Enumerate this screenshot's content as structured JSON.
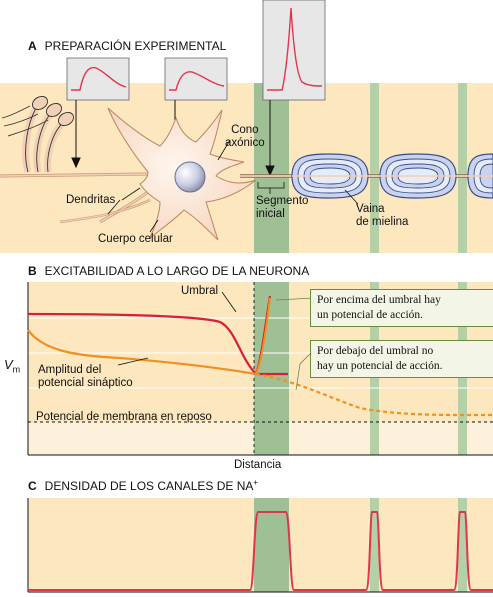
{
  "panel_a": {
    "letter": "A",
    "title": "PREPARACIÓN EXPERIMENTAL",
    "labels": {
      "cono": "Cono",
      "axonico": "axónico",
      "dendritas": "Dendritas",
      "cuerpo_celular": "Cuerpo celular",
      "segmento": "Segmento",
      "inicial": "inicial",
      "vaina": "Vaina",
      "de_mielina": "de mielina"
    }
  },
  "panel_b": {
    "letter": "B",
    "title": "EXCITABILIDAD A LO LARGO DE LA NEURONA",
    "labels": {
      "umbral": "Umbral",
      "amplitud_1": "Amplitud del",
      "amplitud_2": "potencial sináptico",
      "reposo": "Potencial de membrana en reposo",
      "distancia": "Distancia",
      "vm": "V",
      "vm_sub": "m"
    },
    "callouts": {
      "above_1": "Por encima del umbral hay",
      "above_2": "un potencial de acción.",
      "below_1": "Por debajo del umbral no",
      "below_2": "hay un potencial de acción."
    }
  },
  "panel_c": {
    "letter": "C",
    "title_main": "DENSIDAD DE LOS CANALES DE NA",
    "title_sup": "+"
  },
  "colors": {
    "background": "#fce7bf",
    "segment_band": "#9fbf94",
    "node_band": "#b5cfa7",
    "threshold": "#d6203b",
    "synaptic": "#f0901e",
    "trace": "#e0364a"
  }
}
